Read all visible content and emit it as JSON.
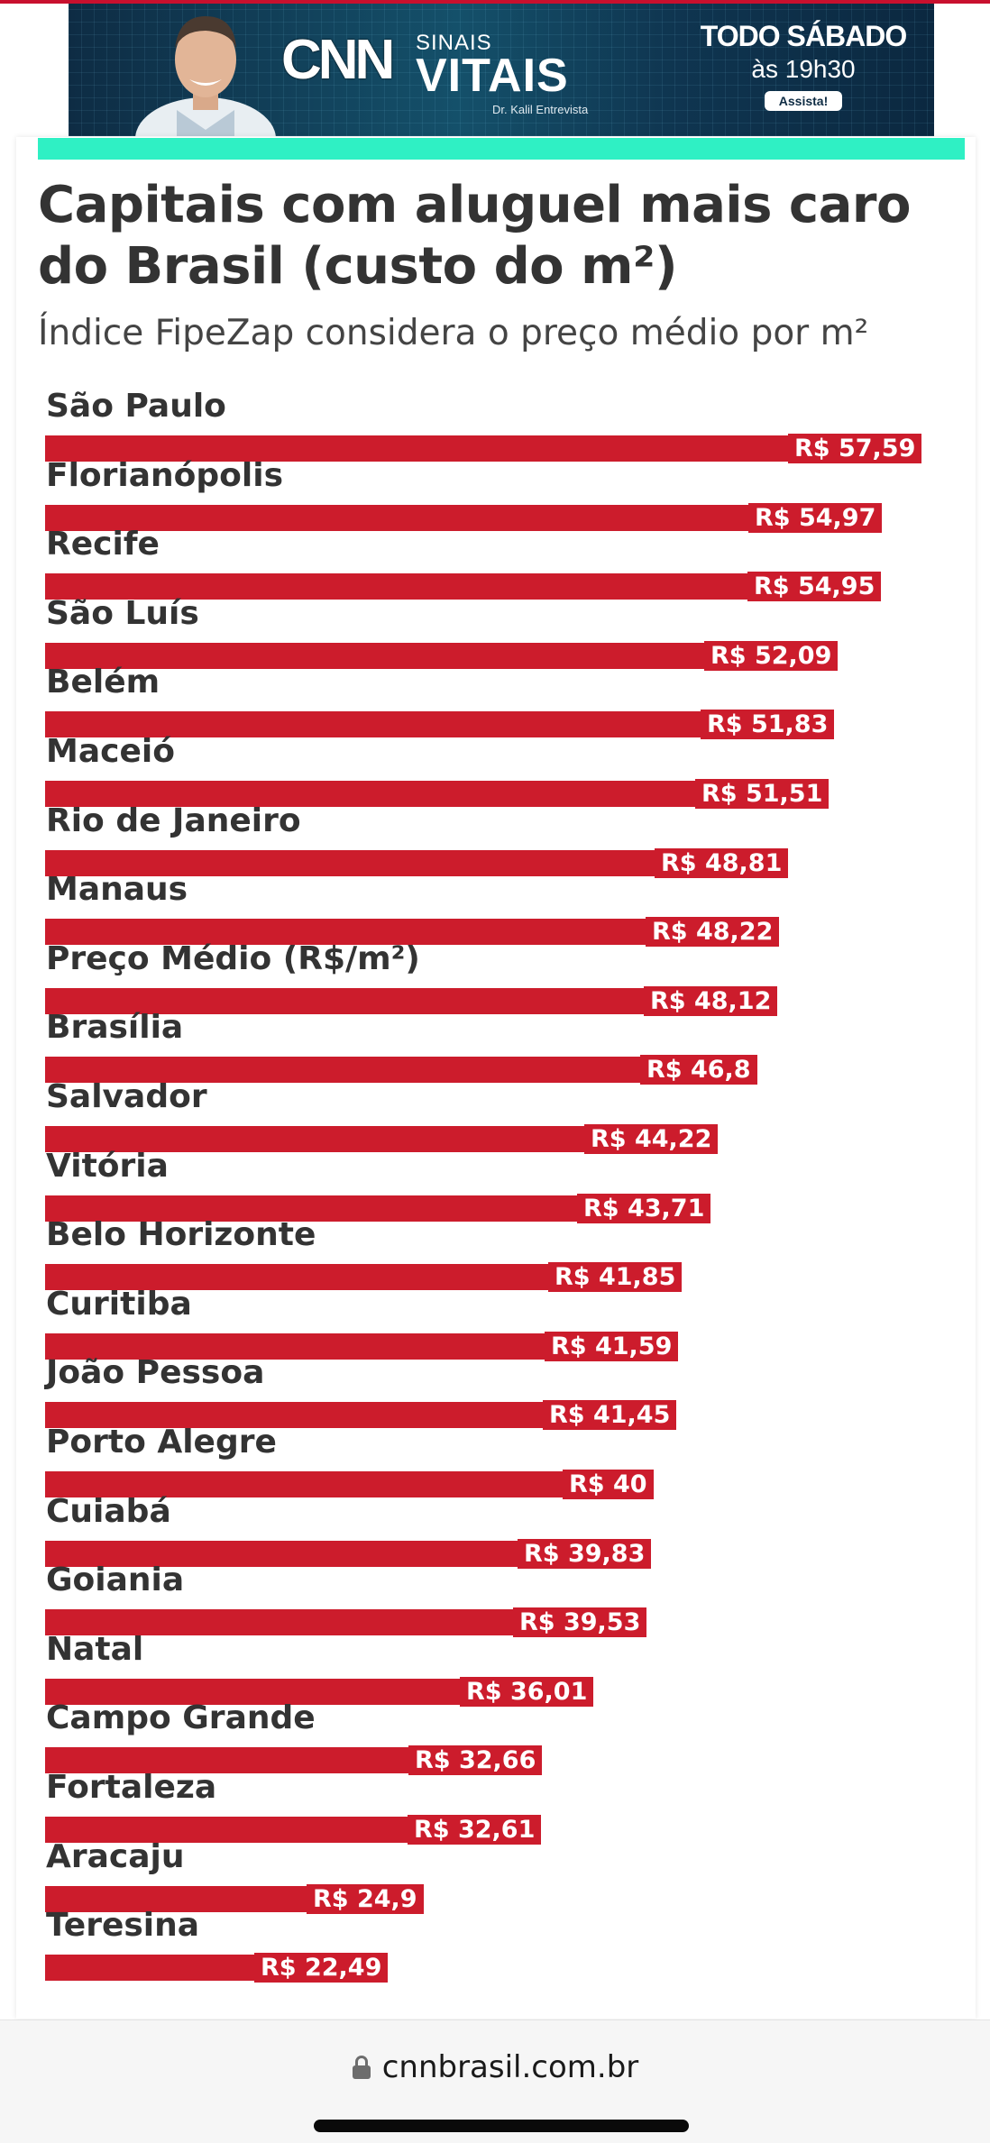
{
  "ad": {
    "brand": "CNN",
    "show_line1": "SINAIS",
    "show_line2": "VITAIS",
    "host": "Dr. Kalil Entrevista",
    "schedule_day": "TODO SÁBADO",
    "schedule_time": "às 19h30",
    "cta": "Assista!"
  },
  "title": "Capitais com aluguel mais caro do Brasil (custo do m²)",
  "subtitle": "Índice FipeZap considera o preço médio por m²",
  "colors": {
    "bar": "#cc1c2c",
    "accent": "#2ff0c4"
  },
  "chart_data": {
    "type": "bar",
    "orientation": "horizontal",
    "title": "Capitais com aluguel mais caro do Brasil (custo do m²)",
    "subtitle": "Índice FipeZap considera o preço médio por m²",
    "categories": [
      "São Paulo",
      "Florianópolis",
      "Recife",
      "São Luís",
      "Belém",
      "Maceió",
      "Rio de Janeiro",
      "Manaus",
      "Preço Médio (R$/m²)",
      "Brasília",
      "Salvador",
      "Vitória",
      "Belo Horizonte",
      "Curitiba",
      "João Pessoa",
      "Porto Alegre",
      "Cuiabá",
      "Goiania",
      "Natal",
      "Campo Grande",
      "Fortaleza",
      "Aracaju",
      "Teresina"
    ],
    "values": [
      57.59,
      54.97,
      54.95,
      52.09,
      51.83,
      51.51,
      48.81,
      48.22,
      48.12,
      46.8,
      44.22,
      43.71,
      41.85,
      41.59,
      41.45,
      40,
      39.83,
      39.53,
      36.01,
      32.66,
      32.61,
      24.9,
      22.49
    ],
    "value_labels": [
      "R$ 57,59",
      "R$ 54,97",
      "R$ 54,95",
      "R$ 52,09",
      "R$ 51,83",
      "R$ 51,51",
      "R$ 48,81",
      "R$ 48,22",
      "R$ 48,12",
      "R$ 46,8",
      "R$ 44,22",
      "R$ 43,71",
      "R$ 41,85",
      "R$ 41,59",
      "R$ 41,45",
      "R$ 40",
      "R$ 39,83",
      "R$ 39,53",
      "R$ 36,01",
      "R$ 32,66",
      "R$ 32,61",
      "R$ 24,9",
      "R$ 22,49"
    ],
    "xlim": [
      0,
      57.59
    ],
    "grid": false,
    "legend": "none"
  },
  "browser": {
    "url": "cnnbrasil.com.br"
  }
}
